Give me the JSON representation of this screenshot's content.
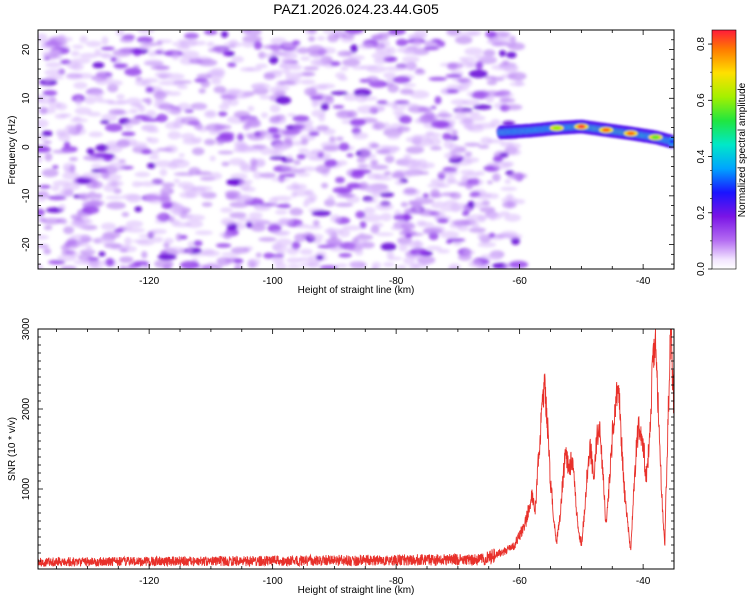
{
  "title": "PAZ1.2026.024.23.44.G05",
  "colors": {
    "snr_line": "#e8302a",
    "purple": "#7a14e6",
    "axis": "#000000"
  },
  "chart_data": [
    {
      "type": "heatmap",
      "name": "spectrogram",
      "xlabel": "Height of straight line (km)",
      "ylabel": "Frequency (Hz)",
      "xlim": [
        -138,
        -35
      ],
      "ylim": [
        -25,
        24
      ],
      "xticks": [
        -120,
        -100,
        -80,
        -60,
        -40
      ],
      "yticks": [
        -20,
        -10,
        0,
        10,
        20
      ],
      "xtick_labels": [
        "-120",
        "-100",
        "-80",
        "-60",
        "-40"
      ],
      "ytick_labels": [
        "-20",
        "-10",
        "0",
        "10",
        "20"
      ],
      "noise_region_x": [
        -138,
        -62
      ],
      "signal_track": {
        "x": [
          -63,
          -58,
          -54,
          -50,
          -46,
          -42,
          -38,
          -35
        ],
        "freq": [
          3.0,
          3.4,
          3.9,
          4.2,
          3.5,
          2.8,
          2.0,
          1.0
        ],
        "amplitude": [
          0.3,
          0.45,
          0.6,
          0.85,
          0.8,
          0.8,
          0.55,
          0.4
        ]
      },
      "colorbar": {
        "label": "Normalized spectral amplitude",
        "range": [
          0,
          0.85
        ],
        "ticks": [
          0.0,
          0.2,
          0.4,
          0.6,
          0.8
        ],
        "tick_labels": [
          "0.0",
          "0.2",
          "0.4",
          "0.6",
          "0.8"
        ]
      }
    },
    {
      "type": "line",
      "name": "snr",
      "xlabel": "Height of straight line (km)",
      "ylabel": "SNR (10 * v/v)",
      "xlim": [
        -138,
        -35
      ],
      "ylim": [
        0,
        3000
      ],
      "xticks": [
        -120,
        -100,
        -80,
        -60,
        -40
      ],
      "yticks": [
        1000,
        2000,
        3000
      ],
      "xtick_labels": [
        "-120",
        "-100",
        "-80",
        "-60",
        "-40"
      ],
      "ytick_labels": [
        "1000",
        "2000",
        "3000"
      ],
      "envelope": {
        "x": [
          -138,
          -66,
          -63,
          -61,
          -60,
          -59,
          -58,
          -57.5,
          -57,
          -56.5,
          -56,
          -55.5,
          -55,
          -54.5,
          -54,
          -53.5,
          -53,
          -52.5,
          -52,
          -51.5,
          -51,
          -50.5,
          -50,
          -49.5,
          -49,
          -48.5,
          -48,
          -47.5,
          -47,
          -46.5,
          -46,
          -45.5,
          -45,
          -44.5,
          -44,
          -43.5,
          -43,
          -42.5,
          -42,
          -41.5,
          -41,
          -40.5,
          -40,
          -39.5,
          -39,
          -38.5,
          -38,
          -37.5,
          -37,
          -36.5,
          -36,
          -35.5,
          -35
        ],
        "snr": [
          90,
          120,
          200,
          280,
          420,
          600,
          900,
          700,
          1300,
          1900,
          2300,
          1800,
          1100,
          650,
          350,
          600,
          1100,
          1500,
          1200,
          1400,
          900,
          500,
          300,
          700,
          1250,
          1500,
          1150,
          1600,
          1850,
          1150,
          550,
          1050,
          1650,
          2050,
          2350,
          1600,
          950,
          550,
          250,
          1000,
          1650,
          1800,
          1550,
          1150,
          1550,
          2450,
          2900,
          1900,
          950,
          250,
          1800,
          3000,
          2000
        ]
      }
    }
  ]
}
